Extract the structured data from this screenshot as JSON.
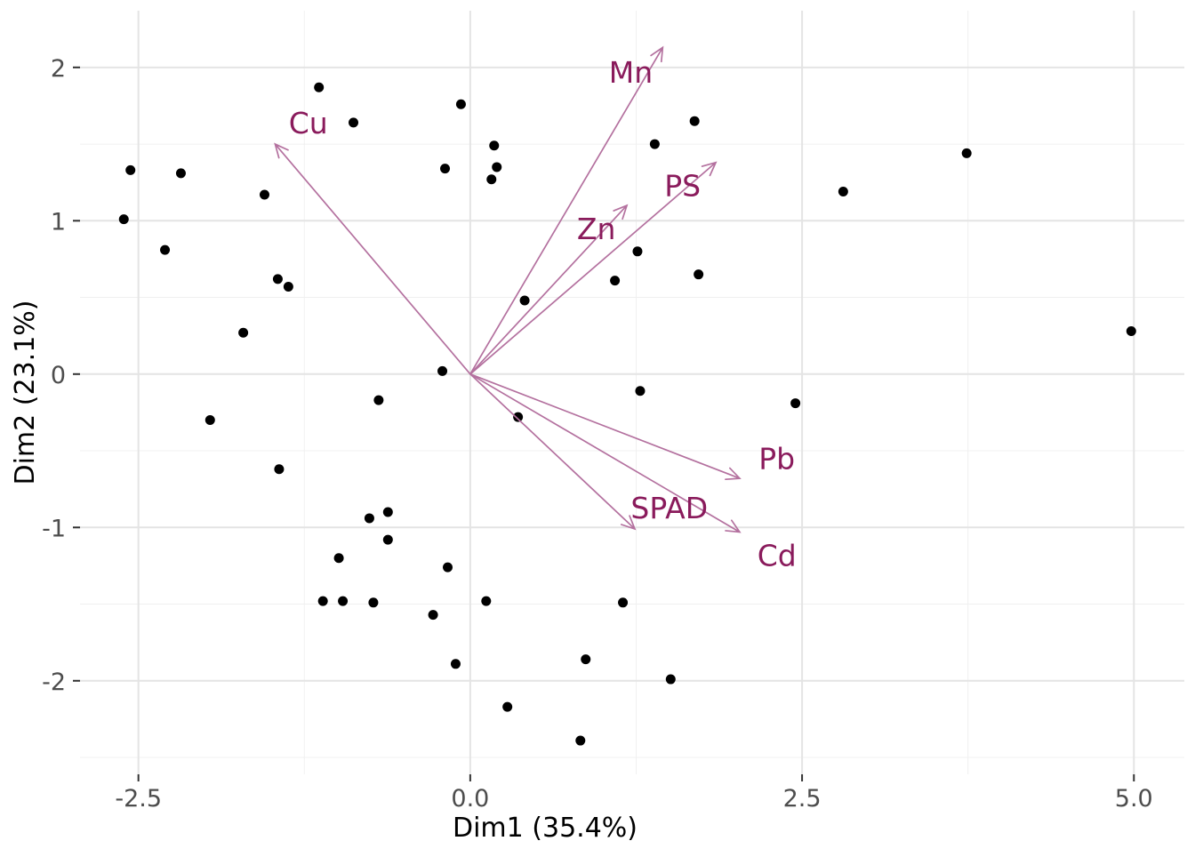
{
  "chart_data": {
    "type": "scatter",
    "title": "",
    "xlabel": "Dim1 (35.4%)",
    "ylabel": "Dim2 (23.1%)",
    "xlim": [
      -2.94,
      5.38
    ],
    "ylim": [
      -2.61,
      2.37
    ],
    "grid": true,
    "legend_position": "none",
    "x_ticks": [
      -2.5,
      0.0,
      2.5,
      5.0
    ],
    "x_tick_labels": [
      "-2.5",
      "0.0",
      "2.5",
      "5.0"
    ],
    "y_ticks": [
      -2,
      -1,
      0,
      1,
      2
    ],
    "y_tick_labels": [
      "-2",
      "-1",
      "0",
      "1",
      "2"
    ],
    "x_minor_ticks": [
      -1.25,
      1.25,
      3.75
    ],
    "y_minor_ticks": [
      -2.5,
      -1.5,
      -0.5,
      0.5,
      1.5
    ],
    "points": [
      [
        -1.14,
        1.87
      ],
      [
        -0.88,
        1.64
      ],
      [
        -0.07,
        1.76
      ],
      [
        0.18,
        1.49
      ],
      [
        -0.19,
        1.34
      ],
      [
        0.2,
        1.35
      ],
      [
        0.16,
        1.27
      ],
      [
        -2.56,
        1.33
      ],
      [
        -2.18,
        1.31
      ],
      [
        -1.55,
        1.17
      ],
      [
        -2.61,
        1.01
      ],
      [
        -2.3,
        0.81
      ],
      [
        1.39,
        1.5
      ],
      [
        1.69,
        1.65
      ],
      [
        1.26,
        0.8
      ],
      [
        3.74,
        1.44
      ],
      [
        2.81,
        1.19
      ],
      [
        -1.45,
        0.62
      ],
      [
        -1.37,
        0.57
      ],
      [
        -1.71,
        0.27
      ],
      [
        -1.96,
        -0.3
      ],
      [
        -0.69,
        -0.17
      ],
      [
        -1.44,
        -0.62
      ],
      [
        1.09,
        0.61
      ],
      [
        1.72,
        0.65
      ],
      [
        0.41,
        0.48
      ],
      [
        -0.21,
        0.02
      ],
      [
        1.28,
        -0.11
      ],
      [
        2.45,
        -0.19
      ],
      [
        0.36,
        -0.28
      ],
      [
        4.98,
        0.28
      ],
      [
        -0.76,
        -0.94
      ],
      [
        -0.62,
        -0.9
      ],
      [
        -0.62,
        -1.08
      ],
      [
        -0.99,
        -1.2
      ],
      [
        -0.17,
        -1.26
      ],
      [
        -1.11,
        -1.48
      ],
      [
        -0.96,
        -1.48
      ],
      [
        -0.73,
        -1.49
      ],
      [
        -0.28,
        -1.57
      ],
      [
        0.12,
        -1.48
      ],
      [
        1.15,
        -1.49
      ],
      [
        -0.11,
        -1.89
      ],
      [
        0.87,
        -1.86
      ],
      [
        1.51,
        -1.99
      ],
      [
        0.28,
        -2.17
      ],
      [
        0.83,
        -2.39
      ]
    ],
    "arrows": [
      {
        "label": "Mn",
        "x": 1.45,
        "y": 2.13,
        "label_x": 1.21,
        "label_y": 1.97
      },
      {
        "label": "Cu",
        "x": -1.47,
        "y": 1.5,
        "label_x": -1.22,
        "label_y": 1.64
      },
      {
        "label": "PS",
        "x": 1.85,
        "y": 1.38,
        "label_x": 1.6,
        "label_y": 1.23
      },
      {
        "label": "Zn",
        "x": 1.18,
        "y": 1.1,
        "label_x": 0.95,
        "label_y": 0.95
      },
      {
        "label": "Pb",
        "x": 2.03,
        "y": -0.68,
        "label_x": 2.31,
        "label_y": -0.55
      },
      {
        "label": "SPAD",
        "x": 1.24,
        "y": -1.01,
        "label_x": 1.5,
        "label_y": -0.87
      },
      {
        "label": "Cd",
        "x": 2.03,
        "y": -1.03,
        "label_x": 2.31,
        "label_y": -1.18
      }
    ],
    "arrow_origin": [
      0,
      0
    ],
    "colors": {
      "background": "#ffffff",
      "point": "#000000",
      "arrow": "#b4719f",
      "arrow_label": "#8a1b5c",
      "tick_label": "#4d4d4d",
      "axis_title": "#000000",
      "grid_major": "#e4e4e4",
      "grid_minor": "#f0f0f0",
      "tick_mark": "#333333"
    }
  }
}
